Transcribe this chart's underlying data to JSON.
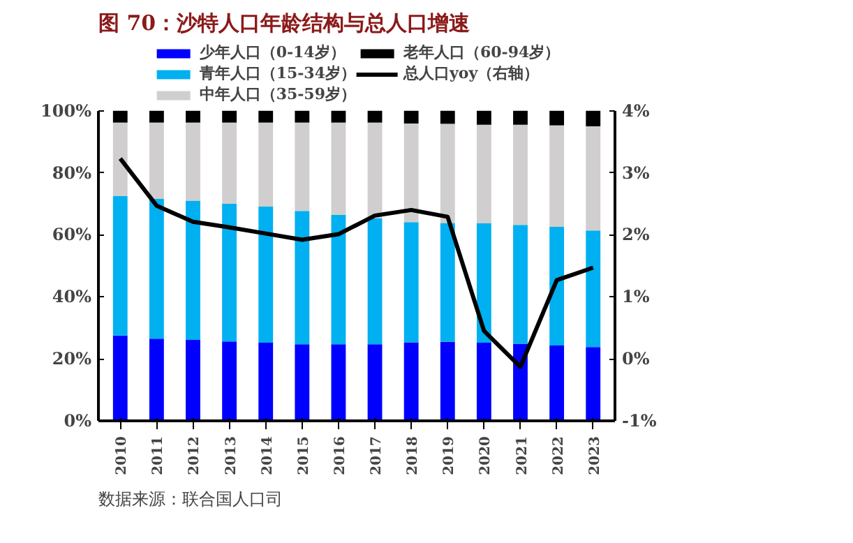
{
  "chart_data": {
    "type": "bar",
    "stacked": true,
    "title": "图 70：沙特人口年龄结构与总人口增速",
    "categories": [
      "2010",
      "2011",
      "2012",
      "2013",
      "2014",
      "2015",
      "2016",
      "2017",
      "2018",
      "2019",
      "2020",
      "2021",
      "2022",
      "2023"
    ],
    "series": [
      {
        "name": "少年人口（0-14岁）",
        "color": "#0000ff",
        "values": [
          27.5,
          26.5,
          26.1,
          25.6,
          25.2,
          24.7,
          24.7,
          24.7,
          25.3,
          25.5,
          25.2,
          24.9,
          24.3,
          23.8
        ]
      },
      {
        "name": "青年人口（15-34岁）",
        "color": "#00b0f0",
        "values": [
          45.0,
          45.1,
          44.9,
          44.4,
          43.9,
          43.0,
          41.7,
          40.6,
          38.8,
          38.3,
          38.5,
          38.3,
          38.3,
          37.6
        ]
      },
      {
        "name": "中年人口（35-59岁）",
        "color": "#d0cece",
        "values": [
          23.7,
          24.6,
          25.2,
          26.2,
          27.1,
          28.5,
          29.8,
          30.9,
          31.8,
          32.0,
          31.8,
          32.3,
          32.7,
          33.6
        ]
      },
      {
        "name": "老年人口（60-94岁）",
        "color": "#000000",
        "values": [
          3.8,
          3.8,
          3.8,
          3.8,
          3.8,
          3.8,
          3.8,
          3.8,
          4.1,
          4.2,
          4.5,
          4.5,
          4.7,
          5.0
        ]
      },
      {
        "name": "总人口yoy（右轴）",
        "type": "line",
        "axis": "y2",
        "color": "#000000",
        "values": [
          3.23,
          2.47,
          2.21,
          2.12,
          2.02,
          1.92,
          2.01,
          2.31,
          2.4,
          2.29,
          0.45,
          -0.13,
          1.27,
          1.47
        ]
      }
    ],
    "ylim": [
      0,
      100
    ],
    "yticks": [
      {
        "value": 0,
        "label": "0%"
      },
      {
        "value": 20,
        "label": "20%"
      },
      {
        "value": 40,
        "label": "40%"
      },
      {
        "value": 60,
        "label": "60%"
      },
      {
        "value": 80,
        "label": "80%"
      },
      {
        "value": 100,
        "label": "100%"
      }
    ],
    "y2lim": [
      -1,
      4
    ],
    "y2ticks": [
      {
        "value": -1,
        "label": "-1%"
      },
      {
        "value": 0,
        "label": "0%"
      },
      {
        "value": 1,
        "label": "1%"
      },
      {
        "value": 2,
        "label": "2%"
      },
      {
        "value": 3,
        "label": "3%"
      },
      {
        "value": 4,
        "label": "4%"
      }
    ],
    "grid": false,
    "legend": "top",
    "annotations": [
      "数据来源：联合国人口司"
    ]
  }
}
